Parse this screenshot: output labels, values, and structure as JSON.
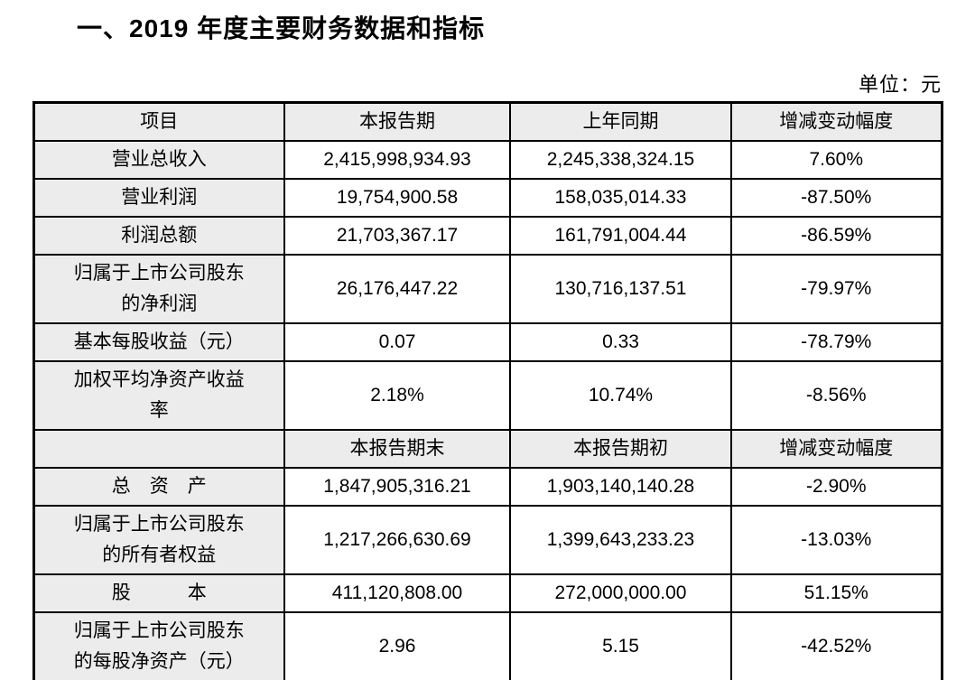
{
  "page": {
    "title": "一、2019 年度主要财务数据和指标",
    "unit_label": "单位：元"
  },
  "table": {
    "section1": {
      "headers": [
        "项目",
        "本报告期",
        "上年同期",
        "增减变动幅度"
      ],
      "rows": [
        {
          "label": "营业总收入",
          "current": "2,415,998,934.93",
          "prior": "2,245,338,324.15",
          "change": "7.60%"
        },
        {
          "label": "营业利润",
          "current": "19,754,900.58",
          "prior": "158,035,014.33",
          "change": "-87.50%"
        },
        {
          "label": "利润总额",
          "current": "21,703,367.17",
          "prior": "161,791,004.44",
          "change": "-86.59%"
        },
        {
          "label": "归属于上市公司股东\n的净利润",
          "current": "26,176,447.22",
          "prior": "130,716,137.51",
          "change": "-79.97%"
        },
        {
          "label": "基本每股收益（元）",
          "current": "0.07",
          "prior": "0.33",
          "change": "-78.79%"
        },
        {
          "label": "加权平均净资产收益\n率",
          "current": "2.18%",
          "prior": "10.74%",
          "change": "-8.56%"
        }
      ]
    },
    "section2": {
      "headers": [
        "",
        "本报告期末",
        "本报告期初",
        "增减变动幅度"
      ],
      "rows": [
        {
          "label": "总　资　产",
          "current": "1,847,905,316.21",
          "prior": "1,903,140,140.28",
          "change": "-2.90%"
        },
        {
          "label": "归属于上市公司股东\n的所有者权益",
          "current": "1,217,266,630.69",
          "prior": "1,399,643,233.23",
          "change": "-13.03%"
        },
        {
          "label": "股　　　本",
          "current": "411,120,808.00",
          "prior": "272,000,000.00",
          "change": "51.15%"
        },
        {
          "label": "归属于上市公司股东\n的每股净资产（元）",
          "current": "2.96",
          "prior": "5.15",
          "change": "-42.52%"
        }
      ]
    }
  }
}
